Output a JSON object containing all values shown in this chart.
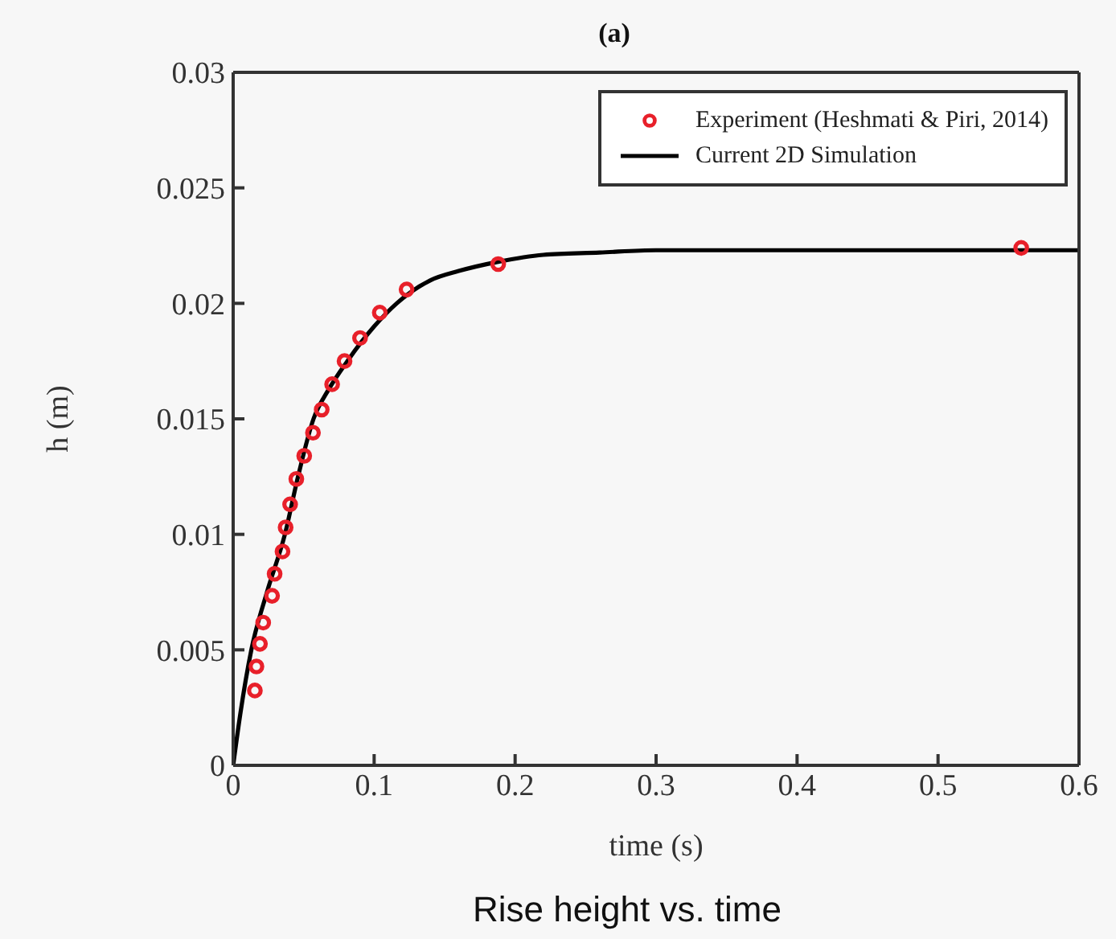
{
  "chart_data": {
    "type": "scatter",
    "title": "(a)",
    "xlabel": "time (s)",
    "ylabel": "h (m)",
    "annotations": [
      "Rise height vs. time"
    ],
    "xlim": [
      0,
      0.6
    ],
    "xticks": [
      0,
      0.1,
      0.2,
      0.3,
      0.4,
      0.5,
      0.6
    ],
    "ylim": [
      0,
      0.03
    ],
    "yticks": [
      0,
      0.005,
      0.01,
      0.015,
      0.02,
      0.025,
      0.03
    ],
    "legend": "top right",
    "marker": "circle",
    "series": [
      {
        "name": "Experiment (Heshmati & Piri, 2014)",
        "color": "#e8202a",
        "x": [
          0.0154,
          0.0165,
          0.019,
          0.0213,
          0.0276,
          0.0294,
          0.035,
          0.0372,
          0.0404,
          0.0448,
          0.0504,
          0.0566,
          0.0628,
          0.0702,
          0.079,
          0.09,
          0.104,
          0.123,
          0.188,
          0.559
        ],
        "values": [
          0.00324,
          0.00428,
          0.00526,
          0.00618,
          0.00734,
          0.00829,
          0.00926,
          0.0103,
          0.0113,
          0.0124,
          0.0134,
          0.0144,
          0.0154,
          0.0165,
          0.0175,
          0.0185,
          0.0196,
          0.0206,
          0.0217,
          0.0224
        ]
      },
      {
        "name": "Current 2D Simulation",
        "type": "line",
        "color": "#000000",
        "line_style": "solid",
        "marker": "none",
        "x": [
          0,
          0.005,
          0.0129,
          0.024,
          0.0367,
          0.046,
          0.057,
          0.068,
          0.081,
          0.1,
          0.116,
          0.14,
          0.16,
          0.188,
          0.22,
          0.26,
          0.3,
          0.6
        ],
        "values": [
          0,
          0.0022,
          0.005,
          0.0075,
          0.01,
          0.0125,
          0.015,
          0.0163,
          0.0175,
          0.019,
          0.02,
          0.021,
          0.0214,
          0.0218,
          0.0221,
          0.0222,
          0.0223,
          0.0223
        ]
      }
    ]
  }
}
